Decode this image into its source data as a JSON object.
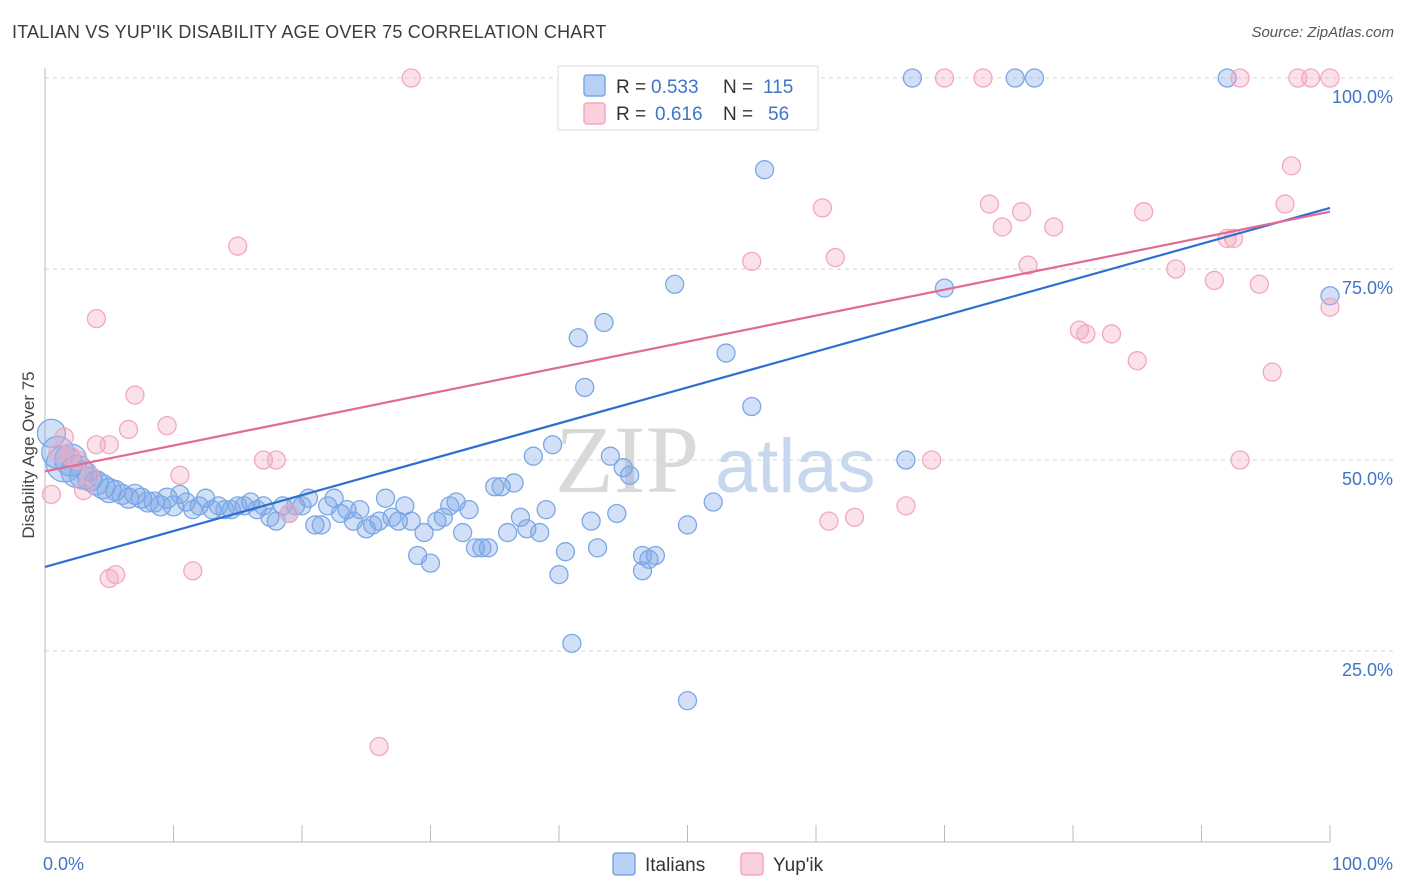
{
  "header": {
    "title": "ITALIAN VS YUP'IK DISABILITY AGE OVER 75 CORRELATION CHART",
    "source": "Source: ZipAtlas.com"
  },
  "legend_top": {
    "rows": [
      {
        "r_label": "R =",
        "r_value": "0.533",
        "n_label": "N =",
        "n_value": "115",
        "color": "#7ba7e6"
      },
      {
        "r_label": "R =",
        "r_value": "0.616",
        "n_label": "N =",
        "n_value": "56",
        "color": "#f3a8bf"
      }
    ]
  },
  "legend_bottom": [
    {
      "label": "Italians",
      "color": "#7ba7e6"
    },
    {
      "label": "Yup'ik",
      "color": "#f3a8bf"
    }
  ],
  "watermark": {
    "zip": "ZIP",
    "atlas": "atlas"
  },
  "chart_data": {
    "type": "scatter",
    "title": "ITALIAN VS YUP'IK DISABILITY AGE OVER 75 CORRELATION CHART",
    "xlabel": "",
    "ylabel": "Disability Age Over 75",
    "xlim": [
      0,
      100
    ],
    "ylim": [
      0,
      100
    ],
    "x_tick_labels": [
      "0.0%",
      "100.0%"
    ],
    "y_tick_labels": [
      "25.0%",
      "50.0%",
      "75.0%",
      "100.0%"
    ],
    "y_ticks": [
      25,
      50,
      75,
      100
    ],
    "grid": true,
    "legend_placement": "top-center",
    "series": [
      {
        "name": "Italians",
        "color": "#7ba7e6",
        "line_color": "#2f6fcf",
        "R": 0.533,
        "N": 115,
        "trend": [
          [
            0,
            36.0
          ],
          [
            100,
            83.0
          ]
        ],
        "points": [
          [
            0.5,
            53.5,
            14
          ],
          [
            1.0,
            51.0,
            16
          ],
          [
            1.5,
            49.5,
            18
          ],
          [
            2.0,
            50.0,
            16
          ],
          [
            2.5,
            48.5,
            16
          ],
          [
            3.0,
            48.0,
            14
          ],
          [
            3.5,
            47.5,
            12
          ],
          [
            4.0,
            47.0,
            12
          ],
          [
            4.5,
            46.5,
            12
          ],
          [
            5.0,
            46.0,
            12
          ],
          [
            5.5,
            46.0,
            10
          ],
          [
            6.0,
            45.5,
            10
          ],
          [
            6.5,
            45.0,
            10
          ],
          [
            7.0,
            45.5,
            10
          ],
          [
            7.5,
            45.0,
            10
          ],
          [
            8.0,
            44.5,
            10
          ],
          [
            8.5,
            44.5,
            10
          ],
          [
            9.0,
            44.0,
            10
          ],
          [
            9.5,
            45.0,
            10
          ],
          [
            10.0,
            44.0,
            10
          ],
          [
            10.5,
            45.5,
            9
          ],
          [
            11.0,
            44.5,
            9
          ],
          [
            11.5,
            43.5,
            9
          ],
          [
            12.0,
            44.0,
            9
          ],
          [
            12.5,
            45.0,
            9
          ],
          [
            13.0,
            43.5,
            9
          ],
          [
            13.5,
            44.0,
            9
          ],
          [
            14.0,
            43.5,
            9
          ],
          [
            14.5,
            43.5,
            9
          ],
          [
            15.0,
            44.0,
            9
          ],
          [
            15.5,
            44.0,
            9
          ],
          [
            16.0,
            44.5,
            9
          ],
          [
            16.5,
            43.5,
            9
          ],
          [
            17.0,
            44.0,
            9
          ],
          [
            17.5,
            42.5,
            9
          ],
          [
            18.0,
            42.0,
            9
          ],
          [
            18.5,
            44.0,
            9
          ],
          [
            19.0,
            43.0,
            9
          ],
          [
            19.5,
            44.0,
            9
          ],
          [
            20.0,
            44.0,
            9
          ],
          [
            20.5,
            45.0,
            9
          ],
          [
            21.0,
            41.5,
            9
          ],
          [
            21.5,
            41.5,
            9
          ],
          [
            22.0,
            44.0,
            9
          ],
          [
            22.5,
            45.0,
            9
          ],
          [
            23.0,
            43.0,
            9
          ],
          [
            23.5,
            43.5,
            9
          ],
          [
            24.0,
            42.0,
            9
          ],
          [
            24.5,
            43.5,
            9
          ],
          [
            25.0,
            41.0,
            9
          ],
          [
            25.5,
            41.5,
            9
          ],
          [
            26.0,
            42.0,
            9
          ],
          [
            26.5,
            45.0,
            9
          ],
          [
            27.0,
            42.5,
            9
          ],
          [
            27.5,
            42.0,
            9
          ],
          [
            28.0,
            44.0,
            9
          ],
          [
            28.5,
            42.0,
            9
          ],
          [
            29.0,
            37.5,
            9
          ],
          [
            29.5,
            40.5,
            9
          ],
          [
            30.0,
            36.5,
            9
          ],
          [
            30.5,
            42.0,
            9
          ],
          [
            31.0,
            42.5,
            9
          ],
          [
            31.5,
            44.0,
            9
          ],
          [
            32.0,
            44.5,
            9
          ],
          [
            32.5,
            40.5,
            9
          ],
          [
            33.0,
            43.5,
            9
          ],
          [
            33.5,
            38.5,
            9
          ],
          [
            34.0,
            38.5,
            9
          ],
          [
            34.5,
            38.5,
            9
          ],
          [
            35.0,
            46.5,
            9
          ],
          [
            35.5,
            46.5,
            9
          ],
          [
            36.0,
            40.5,
            9
          ],
          [
            36.5,
            47.0,
            9
          ],
          [
            37.0,
            42.5,
            9
          ],
          [
            37.5,
            41.0,
            9
          ],
          [
            38.0,
            50.5,
            9
          ],
          [
            38.5,
            40.5,
            9
          ],
          [
            39.0,
            43.5,
            9
          ],
          [
            39.5,
            52.0,
            9
          ],
          [
            40.0,
            35.0,
            9
          ],
          [
            40.5,
            38.0,
            9
          ],
          [
            41.0,
            26.0,
            9
          ],
          [
            41.5,
            66.0,
            9
          ],
          [
            42.0,
            59.5,
            9
          ],
          [
            42.5,
            42.0,
            9
          ],
          [
            43.0,
            38.5,
            9
          ],
          [
            43.5,
            68.0,
            9
          ],
          [
            44.0,
            50.5,
            9
          ],
          [
            44.5,
            43.0,
            9
          ],
          [
            45.0,
            49.0,
            9
          ],
          [
            45.5,
            48.0,
            9
          ],
          [
            46.5,
            37.5,
            9
          ],
          [
            46.5,
            35.5,
            9
          ],
          [
            47.0,
            37.0,
            9
          ],
          [
            47.5,
            37.5,
            9
          ],
          [
            49.0,
            73.0,
            9
          ],
          [
            50.0,
            41.5,
            9
          ],
          [
            50.0,
            18.5,
            9
          ],
          [
            52.0,
            44.5,
            9
          ],
          [
            53.0,
            64.0,
            9
          ],
          [
            55.0,
            57.0,
            9
          ],
          [
            54.0,
            100,
            9
          ],
          [
            57.0,
            100,
            9
          ],
          [
            56.0,
            88.0,
            9
          ],
          [
            67.0,
            50.0,
            9
          ],
          [
            67.5,
            100,
            9
          ],
          [
            70.0,
            72.5,
            9
          ],
          [
            75.5,
            100,
            9
          ],
          [
            77.0,
            100,
            9
          ],
          [
            92.0,
            100,
            9
          ],
          [
            100.0,
            71.5,
            9
          ]
        ]
      },
      {
        "name": "Yup'ik",
        "color": "#f3a8bf",
        "line_color": "#e06b93",
        "R": 0.616,
        "N": 56,
        "trend": [
          [
            0,
            48.5
          ],
          [
            100,
            82.5
          ]
        ],
        "points": [
          [
            0.5,
            45.5,
            9
          ],
          [
            1.0,
            51.0,
            9
          ],
          [
            1.5,
            53.0,
            9
          ],
          [
            2.0,
            50.5,
            9
          ],
          [
            2.5,
            50.0,
            9
          ],
          [
            3.0,
            46.0,
            9
          ],
          [
            3.5,
            48.0,
            9
          ],
          [
            4.0,
            52.0,
            9
          ],
          [
            4.0,
            68.5,
            9
          ],
          [
            5.0,
            52.0,
            9
          ],
          [
            5.0,
            34.5,
            9
          ],
          [
            5.5,
            35.0,
            9
          ],
          [
            6.5,
            54.0,
            9
          ],
          [
            7.0,
            58.5,
            9
          ],
          [
            9.5,
            54.5,
            9
          ],
          [
            10.5,
            48.0,
            9
          ],
          [
            11.5,
            35.5,
            9
          ],
          [
            15.0,
            78.0,
            9
          ],
          [
            17.0,
            50.0,
            9
          ],
          [
            18.0,
            50.0,
            9
          ],
          [
            19.0,
            43.0,
            9
          ],
          [
            26.0,
            12.5,
            9
          ],
          [
            28.5,
            100,
            9
          ],
          [
            55.0,
            76.0,
            9
          ],
          [
            60.5,
            83.0,
            9
          ],
          [
            61.0,
            42.0,
            9
          ],
          [
            61.5,
            76.5,
            9
          ],
          [
            63.0,
            42.5,
            9
          ],
          [
            67.0,
            44.0,
            9
          ],
          [
            69.0,
            50.0,
            9
          ],
          [
            70.0,
            100,
            9
          ],
          [
            73.0,
            100,
            9
          ],
          [
            73.5,
            83.5,
            9
          ],
          [
            74.5,
            80.5,
            9
          ],
          [
            76.0,
            82.5,
            9
          ],
          [
            76.5,
            75.5,
            9
          ],
          [
            78.5,
            80.5,
            9
          ],
          [
            80.5,
            67.0,
            9
          ],
          [
            81.0,
            66.5,
            9
          ],
          [
            83.0,
            66.5,
            9
          ],
          [
            85.0,
            63.0,
            9
          ],
          [
            85.5,
            82.5,
            9
          ],
          [
            88.0,
            75.0,
            9
          ],
          [
            91.0,
            73.5,
            9
          ],
          [
            92.0,
            79.0,
            9
          ],
          [
            93.0,
            50.0,
            9
          ],
          [
            93.0,
            100,
            9
          ],
          [
            94.5,
            73.0,
            9
          ],
          [
            95.5,
            61.5,
            9
          ],
          [
            96.5,
            83.5,
            9
          ],
          [
            97.0,
            88.5,
            9
          ],
          [
            97.5,
            100,
            9
          ],
          [
            98.5,
            100,
            9
          ],
          [
            100.0,
            70.0,
            9
          ],
          [
            100.0,
            100,
            9
          ],
          [
            92.5,
            79.0,
            9
          ]
        ]
      }
    ]
  }
}
